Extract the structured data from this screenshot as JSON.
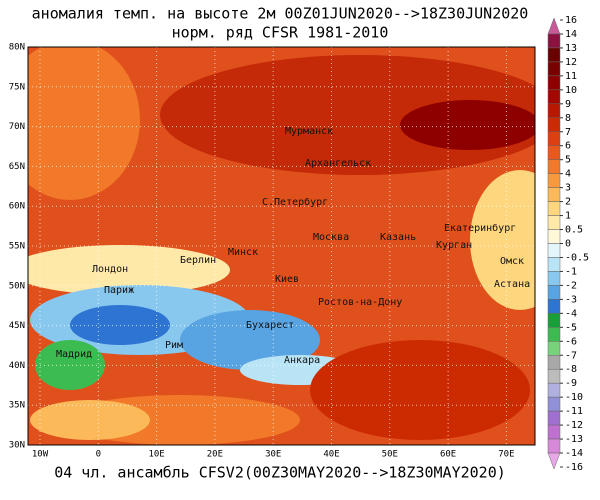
{
  "header": {
    "title": "аномалия темп. на высоте 2м 00Z01JUN2020-->18Z30JUN2020",
    "subtitle": "норм. ряд CFSR 1981-2010"
  },
  "footer": "04 чл. ансамбль CFSV2(00Z30MAY2020-->18Z30MAY2020)",
  "map": {
    "lat_labels": [
      "80N",
      "75N",
      "70N",
      "65N",
      "60N",
      "55N",
      "50N",
      "45N",
      "40N",
      "35N",
      "30N"
    ],
    "lon_labels": [
      "10W",
      "0",
      "10E",
      "20E",
      "30E",
      "40E",
      "50E",
      "60E",
      "70E"
    ],
    "cities": [
      "Мурманск",
      "Архангельск",
      "С.Петербург",
      "Екатеринбург",
      "Москва",
      "Казань",
      "Курган",
      "Минск",
      "Берлин",
      "Омск",
      "Лондон",
      "Киев",
      "Астана",
      "Париж",
      "Ростов-на-Дону",
      "Бухарест",
      "Мадрид",
      "Рим",
      "Анкара"
    ]
  },
  "colorbar": {
    "ticks": [
      16,
      14,
      13,
      12,
      11,
      10,
      9,
      8,
      7,
      6,
      5,
      4,
      3,
      2,
      1,
      0.5,
      0,
      -0.5,
      -1,
      -2,
      -3,
      -4,
      -5,
      -6,
      -7,
      -8,
      -9,
      -10,
      -11,
      -12,
      -13,
      -14,
      -16
    ],
    "colors": [
      "#c85a9a",
      "#8c1040",
      "#6a0000",
      "#7a0000",
      "#8e0000",
      "#a20800",
      "#b81800",
      "#cc2a00",
      "#dc4010",
      "#e85a1c",
      "#f2782a",
      "#f89a3c",
      "#fbb95a",
      "#fdd67e",
      "#fee9a8",
      "#fff8d8",
      "#e4f6fc",
      "#b8e4f6",
      "#88c8ee",
      "#58a4e2",
      "#2e74d2",
      "#18a038",
      "#3cbc50",
      "#78d27a",
      "#a8a8a8",
      "#bcbcbc",
      "#b0b0e0",
      "#9090d8",
      "#a070d0",
      "#c070d0",
      "#d888d8",
      "#e8a8e8"
    ]
  }
}
